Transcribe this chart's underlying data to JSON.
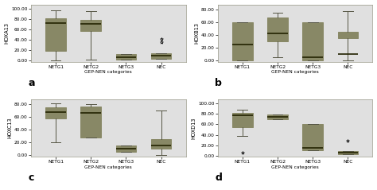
{
  "box_color": "#ccc87a",
  "box_edge_color": "#888866",
  "whisker_color": "#555544",
  "median_color": "#222200",
  "background_color": "#e0e0e0",
  "outer_background": "#ffffff",
  "xlabel": "GEP-NEN categories",
  "categories": [
    "NETG1",
    "NETG2",
    "NETG3",
    "NEC"
  ],
  "panel_labels": [
    "a",
    "b",
    "c",
    "d"
  ],
  "panels": [
    {
      "ylabel": "HOXA13",
      "ylim": [
        -2,
        108
      ],
      "yticks": [
        0,
        20,
        40,
        60,
        80,
        100
      ],
      "ytick_labels": [
        "0.00",
        "20.00",
        "40.00",
        "60.00",
        "80.00",
        "100.00"
      ],
      "data": [
        {
          "q1": 18,
          "median": 72,
          "q3": 82,
          "whislo": 0,
          "whishi": 97,
          "fliers": []
        },
        {
          "q1": 57,
          "median": 70,
          "q3": 78,
          "whislo": 2,
          "whishi": 95,
          "fliers": []
        },
        {
          "q1": 2,
          "median": 7,
          "q3": 12,
          "whislo": 2,
          "whishi": 12,
          "fliers": []
        },
        {
          "q1": 4,
          "median": 9,
          "q3": 14,
          "whislo": 4,
          "whishi": 14,
          "fliers": [
            36,
            42
          ]
        }
      ]
    },
    {
      "ylabel": "HOXB13",
      "ylim": [
        -2,
        88
      ],
      "yticks": [
        0,
        20,
        40,
        60,
        80
      ],
      "ytick_labels": [
        "0.00",
        "20.00",
        "40.00",
        "60.00",
        "80.00"
      ],
      "data": [
        {
          "q1": 0,
          "median": 25,
          "q3": 60,
          "whislo": 0,
          "whishi": 60,
          "fliers": []
        },
        {
          "q1": 30,
          "median": 42,
          "q3": 67,
          "whislo": 5,
          "whishi": 75,
          "fliers": []
        },
        {
          "q1": 0,
          "median": 5,
          "q3": 60,
          "whislo": 0,
          "whishi": 60,
          "fliers": []
        },
        {
          "q1": 35,
          "median": 10,
          "q3": 45,
          "whislo": 0,
          "whishi": 78,
          "fliers": []
        }
      ]
    },
    {
      "ylabel": "HOXC13",
      "ylim": [
        -2,
        88
      ],
      "yticks": [
        0,
        20,
        40,
        60,
        80
      ],
      "ytick_labels": [
        "0.00",
        "20.00",
        "40.00",
        "60.00",
        "80.00"
      ],
      "data": [
        {
          "q1": 58,
          "median": 68,
          "q3": 76,
          "whislo": 20,
          "whishi": 82,
          "fliers": []
        },
        {
          "q1": 28,
          "median": 67,
          "q3": 77,
          "whislo": 28,
          "whishi": 80,
          "fliers": []
        },
        {
          "q1": 5,
          "median": 10,
          "q3": 15,
          "whislo": 5,
          "whishi": 15,
          "fliers": []
        },
        {
          "q1": 10,
          "median": 15,
          "q3": 26,
          "whislo": 0,
          "whishi": 70,
          "fliers": []
        }
      ]
    },
    {
      "ylabel": "HOXD13",
      "ylim": [
        -2,
        108
      ],
      "yticks": [
        0,
        20,
        40,
        60,
        80,
        100
      ],
      "ytick_labels": [
        "0.00",
        "20.00",
        "40.00",
        "60.00",
        "80.00",
        "100.00"
      ],
      "data": [
        {
          "q1": 55,
          "median": 78,
          "q3": 82,
          "whislo": 38,
          "whishi": 88,
          "fliers": [
            5
          ]
        },
        {
          "q1": 70,
          "median": 75,
          "q3": 79,
          "whislo": 70,
          "whishi": 79,
          "fliers": []
        },
        {
          "q1": 10,
          "median": 15,
          "q3": 60,
          "whislo": 10,
          "whishi": 60,
          "fliers": []
        },
        {
          "q1": 3,
          "median": 6,
          "q3": 9,
          "whislo": 3,
          "whishi": 9,
          "fliers": [
            28
          ]
        }
      ]
    }
  ]
}
